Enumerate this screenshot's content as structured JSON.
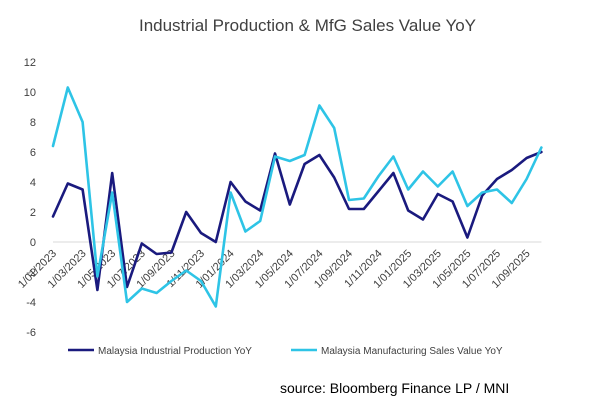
{
  "chart_data": {
    "type": "line",
    "title": "Industrial Production & MfG Sales Value YoY",
    "xlabel": "",
    "ylabel": "",
    "ylim": [
      -6,
      12
    ],
    "yticks": [
      -6,
      -4,
      -2,
      0,
      2,
      4,
      6,
      8,
      10,
      12
    ],
    "x_tick_labels": [
      "1/01/2023",
      "1/03/2023",
      "1/05/2023",
      "1/07/2023",
      "1/09/2023",
      "1/11/2023",
      "1/01/2024",
      "1/03/2024",
      "1/05/2024",
      "1/07/2024",
      "1/09/2024",
      "1/11/2024",
      "1/01/2025",
      "1/03/2025",
      "1/05/2025",
      "1/07/2025",
      "1/09/2025"
    ],
    "x": [
      "2023-01",
      "2023-02",
      "2023-03",
      "2023-04",
      "2023-05",
      "2023-06",
      "2023-07",
      "2023-08",
      "2023-09",
      "2023-10",
      "2023-11",
      "2023-12",
      "2024-01",
      "2024-02",
      "2024-03",
      "2024-04",
      "2024-05",
      "2024-06",
      "2024-07",
      "2024-08",
      "2024-09",
      "2024-10",
      "2024-11",
      "2024-12",
      "2025-01",
      "2025-02",
      "2025-03",
      "2025-04",
      "2025-05",
      "2025-06",
      "2025-07",
      "2025-08",
      "2025-09",
      "2025-10"
    ],
    "grid": false,
    "legend": "bottom",
    "series": [
      {
        "name": "Malaysia Industrial Production YoY",
        "color": "#1a1a7e",
        "values": [
          1.7,
          3.9,
          3.5,
          -3.2,
          4.6,
          -3.0,
          -0.1,
          -0.8,
          -0.7,
          2.0,
          0.6,
          0.0,
          4.0,
          2.7,
          2.1,
          5.9,
          2.5,
          5.2,
          5.8,
          4.3,
          2.2,
          2.2,
          3.4,
          4.6,
          2.1,
          1.5,
          3.2,
          2.7,
          0.3,
          3.1,
          4.2,
          4.8,
          5.6,
          6.0
        ]
      },
      {
        "name": "Malaysia Manufacturing Sales Value YoY",
        "color": "#2ec4e6",
        "values": [
          6.4,
          10.3,
          8.0,
          -2.3,
          3.3,
          -4.0,
          -3.1,
          -3.4,
          -2.6,
          -1.9,
          -2.6,
          -4.3,
          3.3,
          0.7,
          1.4,
          5.7,
          5.4,
          5.8,
          9.1,
          7.6,
          2.8,
          2.9,
          4.4,
          5.7,
          3.5,
          4.7,
          3.7,
          4.7,
          2.4,
          3.3,
          3.5,
          2.6,
          4.2,
          6.3
        ]
      }
    ]
  },
  "source_text": "source: Bloomberg Finance LP  /  MNI"
}
